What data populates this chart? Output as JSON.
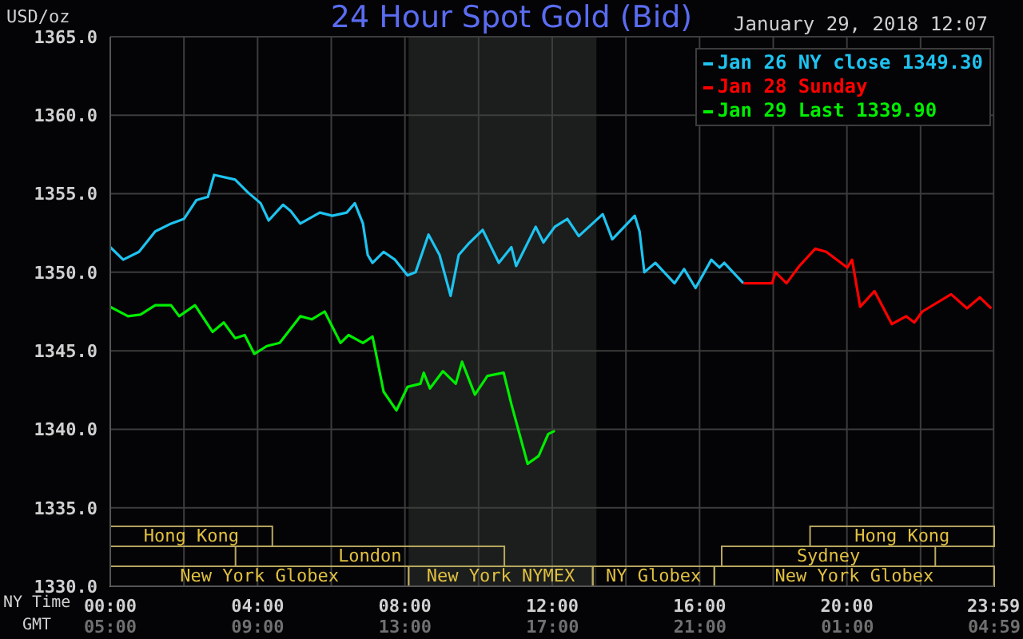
{
  "chart_data": {
    "type": "line",
    "title": "24 Hour Spot Gold (Bid)",
    "subtitle": "January 29, 2018 12:07",
    "ylabel": "USD/oz",
    "xlabel": "NY Time",
    "x2label": "GMT",
    "legend": "top right",
    "grid": true,
    "marker": "none",
    "line_style": "solid",
    "xlim": [
      0,
      24
    ],
    "xticks": [
      {
        "value": 0,
        "label": "00:00"
      },
      {
        "value": 2,
        "label": null
      },
      {
        "value": 4,
        "label": "04:00"
      },
      {
        "value": 6,
        "label": null
      },
      {
        "value": 8,
        "label": "08:00"
      },
      {
        "value": 10,
        "label": null
      },
      {
        "value": 12,
        "label": "12:00"
      },
      {
        "value": 14,
        "label": null
      },
      {
        "value": 16,
        "label": "16:00"
      },
      {
        "value": 18,
        "label": null
      },
      {
        "value": 20,
        "label": "20:00"
      },
      {
        "value": 22,
        "label": null
      },
      {
        "value": 23.983,
        "label": "23:59"
      }
    ],
    "x2lim": [
      "2018-01-29T05:00",
      "2018-01-30T04:59"
    ],
    "x2ticks": [
      {
        "value": "2018-01-29T05:00",
        "label": "05:00"
      },
      {
        "value": "2018-01-29T09:00",
        "label": "09:00"
      },
      {
        "value": "2018-01-29T13:00",
        "label": "13:00"
      },
      {
        "value": "2018-01-29T17:00",
        "label": "17:00"
      },
      {
        "value": "2018-01-29T21:00",
        "label": "21:00"
      },
      {
        "value": "2018-01-30T01:00",
        "label": "01:00"
      },
      {
        "value": "2018-01-30T04:59",
        "label": "04:59"
      }
    ],
    "ylim": [
      1330,
      1365
    ],
    "yticks": [
      {
        "value": 1330,
        "label": "1330.0"
      },
      {
        "value": 1335,
        "label": "1335.0"
      },
      {
        "value": 1340,
        "label": "1340.0"
      },
      {
        "value": 1345,
        "label": "1345.0"
      },
      {
        "value": 1350,
        "label": "1350.0"
      },
      {
        "value": 1355,
        "label": "1355.0"
      },
      {
        "value": 1360,
        "label": "1360.0"
      },
      {
        "value": 1365,
        "label": "1365.0"
      }
    ],
    "bands": [
      {
        "axis": "x",
        "from": 8.1,
        "to": 13.2,
        "color": "#1a1d1a"
      }
    ],
    "annotations": [
      "Hong Kong",
      "London",
      "New York Globex",
      "New York NYMEX",
      "NY Globex",
      "Sydney",
      "Hong Kong",
      "New York Globex"
    ],
    "series": [
      {
        "name": "Jan 26 NY close 1349.30",
        "color": "#1ec3f0",
        "x": [
          0,
          0.35,
          0.78,
          1.22,
          1.65,
          2.0,
          2.34,
          2.65,
          2.82,
          3.39,
          3.73,
          4.08,
          4.3,
          4.69,
          4.9,
          5.16,
          5.69,
          6.03,
          6.42,
          6.64,
          6.86,
          6.99,
          7.12,
          7.42,
          7.73,
          8.07,
          8.29,
          8.64,
          8.94,
          9.24,
          9.46,
          9.72,
          10.11,
          10.55,
          10.89,
          11.02,
          11.55,
          11.76,
          12.07,
          12.41,
          12.72,
          13.37,
          13.63,
          14.24,
          14.37,
          14.5,
          14.8,
          15.32,
          15.58,
          15.89,
          16.32,
          16.54,
          16.67,
          17.19
        ],
        "values": [
          1351.6,
          1350.8,
          1351.3,
          1352.6,
          1353.1,
          1353.4,
          1354.6,
          1354.8,
          1356.2,
          1355.9,
          1355.1,
          1354.4,
          1353.3,
          1354.3,
          1353.9,
          1353.1,
          1353.8,
          1353.6,
          1353.8,
          1354.4,
          1353.1,
          1351.1,
          1350.6,
          1351.3,
          1350.8,
          1349.8,
          1350.0,
          1352.4,
          1351.1,
          1348.5,
          1351.1,
          1351.8,
          1352.7,
          1350.6,
          1351.6,
          1350.4,
          1352.9,
          1351.9,
          1352.9,
          1353.4,
          1352.3,
          1353.7,
          1352.1,
          1353.6,
          1352.6,
          1350.0,
          1350.6,
          1349.3,
          1350.2,
          1349.0,
          1350.8,
          1350.3,
          1350.6,
          1349.3
        ]
      },
      {
        "name": "Jan 28 Sunday",
        "color": "#ff0000",
        "x": [
          17.19,
          17.97,
          18.06,
          18.36,
          18.71,
          19.14,
          19.44,
          20.01,
          20.14,
          20.36,
          20.75,
          21.22,
          21.61,
          21.83,
          22.05,
          22.83,
          23.26,
          23.61,
          23.92
        ],
        "values": [
          1349.3,
          1349.3,
          1350.0,
          1349.3,
          1350.4,
          1351.5,
          1351.3,
          1350.3,
          1350.8,
          1347.8,
          1348.8,
          1346.7,
          1347.2,
          1346.8,
          1347.5,
          1348.6,
          1347.7,
          1348.4,
          1347.7
        ]
      },
      {
        "name": "Jan 29 Last 1339.90",
        "color": "#00ee00",
        "x": [
          0,
          0.48,
          0.82,
          1.22,
          1.65,
          1.87,
          2.3,
          2.78,
          3.08,
          3.39,
          3.65,
          3.91,
          4.25,
          4.6,
          5.16,
          5.47,
          5.82,
          6.25,
          6.47,
          6.86,
          7.12,
          7.2,
          7.42,
          7.77,
          8.07,
          8.42,
          8.51,
          8.68,
          9.03,
          9.38,
          9.55,
          9.9,
          10.24,
          10.68,
          10.89,
          11.33,
          11.63,
          11.89,
          12.07
        ],
        "values": [
          1347.8,
          1347.2,
          1347.3,
          1347.9,
          1347.9,
          1347.2,
          1347.9,
          1346.2,
          1346.8,
          1345.8,
          1346.0,
          1344.8,
          1345.3,
          1345.5,
          1347.2,
          1347.0,
          1347.5,
          1345.5,
          1346.0,
          1345.5,
          1345.9,
          1345.0,
          1342.4,
          1341.2,
          1342.7,
          1342.9,
          1343.6,
          1342.6,
          1343.7,
          1342.9,
          1344.3,
          1342.2,
          1343.4,
          1343.6,
          1341.6,
          1337.8,
          1338.3,
          1339.7,
          1339.9
        ]
      }
    ]
  }
}
